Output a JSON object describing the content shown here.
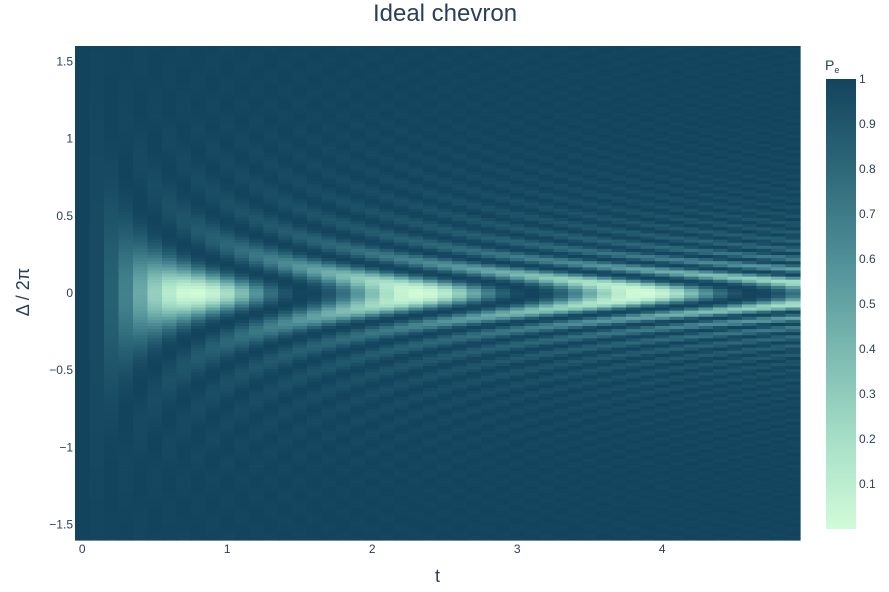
{
  "chart_data": {
    "type": "heatmap",
    "title": "Ideal chevron",
    "xlabel": "t",
    "ylabel": "Δ / 2π",
    "x_range": [
      -0.05,
      4.95
    ],
    "y_range": [
      -1.6,
      1.6
    ],
    "x_ticks": [
      {
        "value": 0,
        "label": "0"
      },
      {
        "value": 1,
        "label": "1"
      },
      {
        "value": 2,
        "label": "2"
      },
      {
        "value": 3,
        "label": "3"
      },
      {
        "value": 4,
        "label": "4"
      }
    ],
    "y_ticks": [
      {
        "value": 1.5,
        "label": "1.5"
      },
      {
        "value": 1,
        "label": "1"
      },
      {
        "value": 0.5,
        "label": "0.5"
      },
      {
        "value": 0,
        "label": "0"
      },
      {
        "value": -0.5,
        "label": "−0.5"
      },
      {
        "value": -1,
        "label": "−1"
      },
      {
        "value": -1.5,
        "label": "−1.5"
      }
    ],
    "grid": {
      "x_start": 0,
      "x_step": 0.1,
      "x_count": 50,
      "y_start": -1.6,
      "y_step": 0.02,
      "y_count": 161
    },
    "z_formula": "P_e = 1 - (1/(1+(2πΔ)^2)) * sin^2(√(1+(2πΔ)^2) * ω * t / 2), ω = 2π/1.55",
    "omega": 4.0537,
    "colorbar": {
      "title_main": "P",
      "title_sub": "e",
      "zmin": 0,
      "zmax": 1,
      "ticks": [
        {
          "value": 1,
          "label": "1"
        },
        {
          "value": 0.9,
          "label": "0.9"
        },
        {
          "value": 0.8,
          "label": "0.8"
        },
        {
          "value": 0.7,
          "label": "0.7"
        },
        {
          "value": 0.6,
          "label": "0.6"
        },
        {
          "value": 0.5,
          "label": "0.5"
        },
        {
          "value": 0.4,
          "label": "0.4"
        },
        {
          "value": 0.3,
          "label": "0.3"
        },
        {
          "value": 0.2,
          "label": "0.2"
        },
        {
          "value": 0.1,
          "label": "0.1"
        }
      ]
    },
    "colorscale": [
      [
        0,
        "#d1fbd8"
      ],
      [
        0.2,
        "#a6dfc7"
      ],
      [
        0.4,
        "#7ab8b0"
      ],
      [
        0.6,
        "#4f8f98"
      ],
      [
        0.8,
        "#2d6879"
      ],
      [
        1,
        "#13445e"
      ]
    ]
  }
}
